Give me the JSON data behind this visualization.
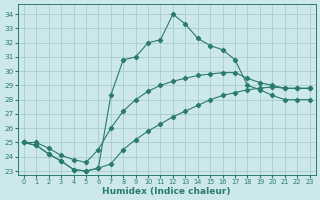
{
  "bg_color": "#cce8ea",
  "grid_color": "#aacccc",
  "line_color": "#2a7a70",
  "xlim": [
    -0.5,
    23.5
  ],
  "ylim": [
    22.7,
    34.7
  ],
  "xticks": [
    0,
    1,
    2,
    3,
    4,
    5,
    6,
    7,
    8,
    9,
    10,
    11,
    12,
    13,
    14,
    15,
    16,
    17,
    18,
    19,
    20,
    21,
    22,
    23
  ],
  "yticks": [
    23,
    24,
    25,
    26,
    27,
    28,
    29,
    30,
    31,
    32,
    33,
    34
  ],
  "xlabel": "Humidex (Indice chaleur)",
  "s1_x": [
    0,
    1,
    2,
    3,
    4,
    5,
    6,
    7,
    8,
    9,
    10,
    11,
    12,
    13,
    14,
    15,
    16,
    17,
    18,
    19,
    20,
    21,
    22,
    23
  ],
  "s1_y": [
    25.0,
    24.8,
    24.2,
    23.7,
    23.1,
    23.0,
    23.2,
    23.5,
    24.5,
    25.2,
    25.8,
    26.3,
    26.8,
    27.2,
    27.6,
    28.0,
    28.3,
    28.5,
    28.7,
    28.8,
    28.9,
    28.8,
    28.8,
    28.8
  ],
  "s2_x": [
    0,
    1,
    2,
    3,
    4,
    5,
    6,
    7,
    8,
    9,
    10,
    11,
    12,
    13,
    14,
    15,
    16,
    17,
    18,
    19,
    20,
    21,
    22,
    23
  ],
  "s2_y": [
    25.0,
    25.0,
    24.6,
    24.1,
    23.8,
    23.6,
    24.5,
    26.0,
    27.2,
    28.0,
    28.6,
    29.0,
    29.3,
    29.5,
    29.7,
    29.8,
    29.9,
    29.9,
    29.5,
    29.2,
    29.0,
    28.8,
    28.8,
    28.8
  ],
  "s3_x": [
    0,
    1,
    2,
    3,
    4,
    5,
    6,
    7,
    8,
    9,
    10,
    11,
    12,
    13,
    14,
    15,
    16,
    17,
    18,
    19,
    20,
    21,
    22,
    23
  ],
  "s3_y": [
    25.0,
    24.8,
    24.2,
    23.7,
    23.1,
    23.0,
    23.2,
    28.3,
    30.8,
    31.0,
    32.0,
    32.2,
    34.0,
    33.3,
    32.3,
    31.8,
    31.5,
    30.8,
    29.0,
    28.7,
    28.3,
    28.0,
    28.0,
    28.0
  ]
}
